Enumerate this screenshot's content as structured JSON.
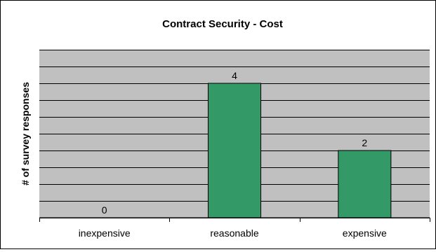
{
  "chart_data": {
    "type": "bar",
    "title": "Contract Security - Cost",
    "xlabel": "",
    "ylabel": "# of survey responses",
    "categories": [
      "inexpensive",
      "reasonable",
      "expensive"
    ],
    "values": [
      0,
      4,
      2
    ],
    "data_labels": [
      "0",
      "4",
      "2"
    ],
    "ylim": [
      0,
      5
    ],
    "y_gridline_step": 0.5,
    "y_tick_labels_shown": false,
    "grid": true,
    "legend": "none",
    "colors": {
      "bar": "#339966",
      "bar_outline": "#000000",
      "plot_area": "#c0c0c0",
      "gridline": "#000000",
      "background": "#ffffff"
    }
  }
}
